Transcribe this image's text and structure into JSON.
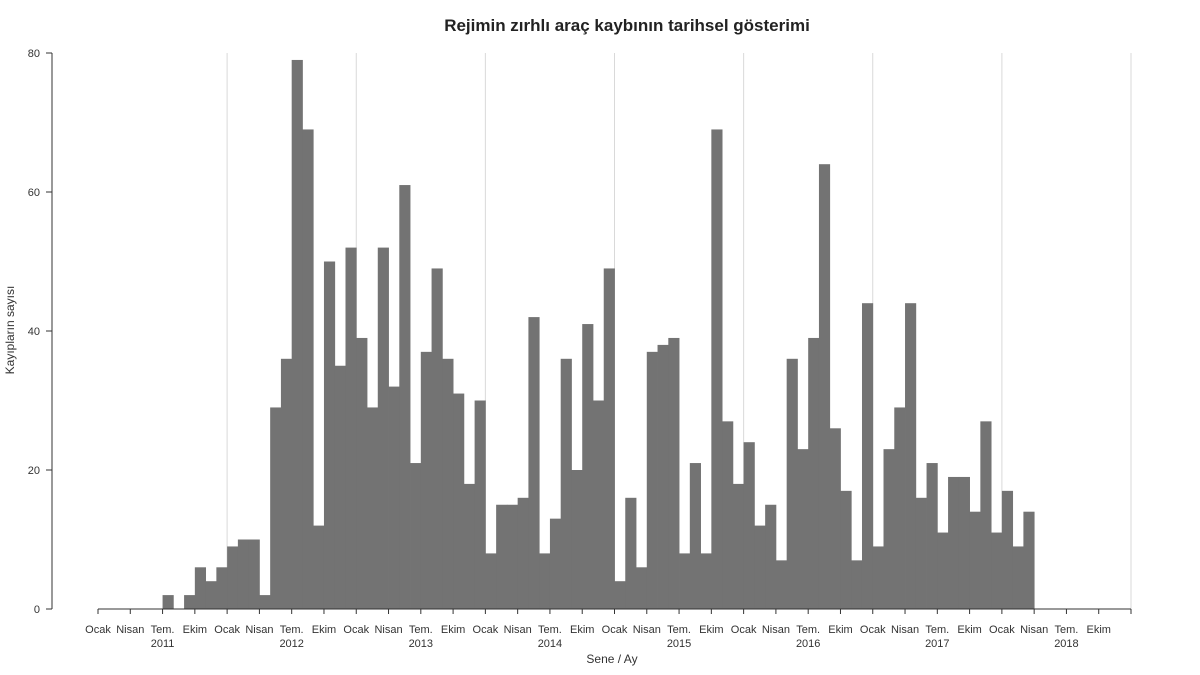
{
  "chart_data": {
    "type": "bar",
    "title": "Rejimin zırhlı araç kaybının tarihsel gösterimi",
    "xlabel": "Sene / Ay",
    "ylabel": "Kayıpların sayısı",
    "ylim": [
      0,
      80
    ],
    "yticks": [
      0,
      20,
      40,
      60,
      80
    ],
    "grid": "vertical lines at each January",
    "bar_color": "#737373",
    "month_tick_labels": [
      "Ocak",
      "Nisan",
      "Tem.",
      "Ekim"
    ],
    "years": [
      "2011",
      "2012",
      "2013",
      "2014",
      "2015",
      "2016",
      "2017",
      "2018"
    ],
    "series": [
      {
        "values": [
          0,
          0,
          0,
          0,
          0,
          0,
          2,
          0,
          2,
          6,
          4,
          6,
          9,
          10,
          10,
          2,
          29,
          36,
          79,
          69,
          12,
          50,
          35,
          52,
          39,
          29,
          52,
          32,
          61,
          21,
          37,
          49,
          36,
          31,
          18,
          30,
          8,
          15,
          15,
          16,
          42,
          8,
          13,
          36,
          20,
          41,
          30,
          49,
          4,
          16,
          6,
          37,
          38,
          39,
          8,
          21,
          8,
          69,
          27,
          18,
          24,
          12,
          15,
          7,
          36,
          23,
          39,
          64,
          26,
          17,
          7,
          44,
          9,
          23,
          29,
          44,
          16,
          21,
          11,
          19,
          19,
          14,
          27,
          11,
          17,
          9,
          14,
          0,
          0,
          0,
          0,
          0,
          0,
          0,
          0,
          0
        ]
      }
    ]
  }
}
